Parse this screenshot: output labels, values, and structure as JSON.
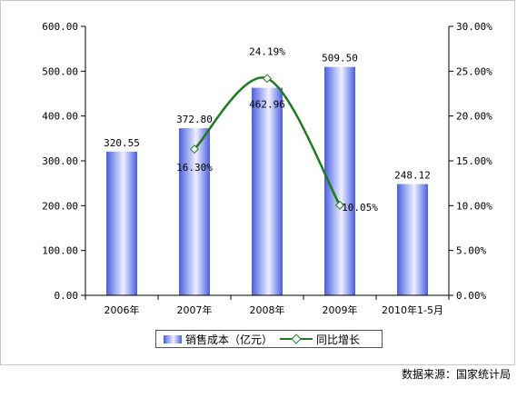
{
  "source_note": "数据来源：国家统计局",
  "legend": {
    "bar_label": "销售成本（亿元）",
    "line_label": "同比增长"
  },
  "colors": {
    "bar": "#4b5fe0",
    "line": "#1f7a1f",
    "grid": "#000000"
  },
  "chart_data": {
    "type": "bar",
    "categories": [
      "2006年",
      "2007年",
      "2008年",
      "2009年",
      "2010年1-5月"
    ],
    "series": [
      {
        "name": "销售成本（亿元）",
        "type": "bar",
        "axis": "left",
        "values": [
          320.55,
          372.8,
          462.96,
          509.5,
          248.12
        ],
        "labels": [
          "320.55",
          "372.80",
          "462.96",
          "509.50",
          "248.12"
        ]
      },
      {
        "name": "同比增长",
        "type": "line",
        "axis": "right",
        "values": [
          null,
          16.3,
          24.19,
          10.05,
          null
        ],
        "labels": [
          "",
          "16.30%",
          "24.19%",
          "10.05%",
          ""
        ]
      }
    ],
    "y_left": {
      "ylim": [
        0,
        600
      ],
      "ticks": [
        "0.00",
        "100.00",
        "200.00",
        "300.00",
        "400.00",
        "500.00",
        "600.00"
      ]
    },
    "y_right": {
      "ylim": [
        0,
        30
      ],
      "ticks": [
        "0.00%",
        "5.00%",
        "10.00%",
        "15.00%",
        "20.00%",
        "25.00%",
        "30.00%"
      ]
    },
    "legend_position": "bottom",
    "grid": false
  }
}
